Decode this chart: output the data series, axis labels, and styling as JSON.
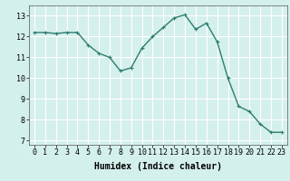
{
  "x": [
    0,
    1,
    2,
    3,
    4,
    5,
    6,
    7,
    8,
    9,
    10,
    11,
    12,
    13,
    14,
    15,
    16,
    17,
    18,
    19,
    20,
    21,
    22,
    23
  ],
  "y": [
    12.2,
    12.2,
    12.15,
    12.2,
    12.2,
    11.6,
    11.2,
    11.0,
    10.35,
    10.5,
    11.45,
    12.0,
    12.45,
    12.9,
    13.05,
    12.35,
    12.65,
    11.75,
    10.0,
    8.65,
    8.4,
    7.8,
    7.4,
    7.4
  ],
  "line_color": "#2d7d6e",
  "marker": "+",
  "marker_size": 3,
  "marker_linewidth": 0.8,
  "background_color": "#d4f0ec",
  "grid_color": "#ffffff",
  "xlabel": "Humidex (Indice chaleur)",
  "xlabel_fontsize": 7,
  "ylim": [
    6.8,
    13.5
  ],
  "yticks": [
    7,
    8,
    9,
    10,
    11,
    12,
    13
  ],
  "xticks": [
    0,
    1,
    2,
    3,
    4,
    5,
    6,
    7,
    8,
    9,
    10,
    11,
    12,
    13,
    14,
    15,
    16,
    17,
    18,
    19,
    20,
    21,
    22,
    23
  ],
  "tick_fontsize": 6,
  "line_width": 1.0
}
